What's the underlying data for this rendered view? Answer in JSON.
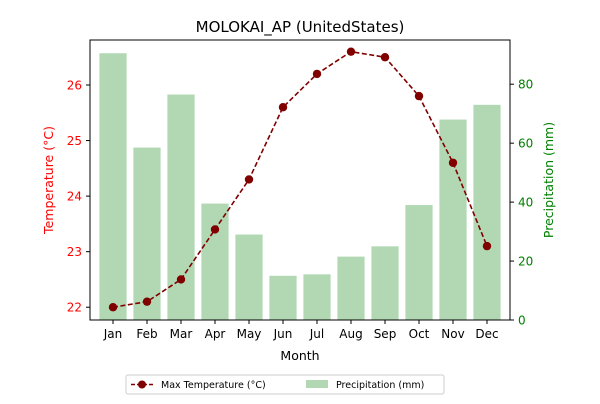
{
  "chart_data": {
    "type": "bar",
    "title": "MOLOKAI_AP (UnitedStates)",
    "xlabel": "Month",
    "ylabel_left": "Temperature (°C)",
    "ylabel_right": "Precipitation (mm)",
    "categories": [
      "Jan",
      "Feb",
      "Mar",
      "Apr",
      "May",
      "Jun",
      "Jul",
      "Aug",
      "Sep",
      "Oct",
      "Nov",
      "Dec"
    ],
    "ylim_left": [
      21.77,
      26.81
    ],
    "ylim_right": [
      0,
      95
    ],
    "yticks_left": [
      "22",
      "23",
      "24",
      "25",
      "26"
    ],
    "yticks_right": [
      "0",
      "20",
      "40",
      "60",
      "80"
    ],
    "grid": false,
    "legend_placement": "bottom-center",
    "series": [
      {
        "name": "Max Temperature (°C)",
        "type": "line",
        "axis": "left",
        "color": "#800000",
        "values": [
          22.0,
          22.1,
          22.5,
          23.4,
          24.3,
          25.6,
          26.2,
          26.6,
          26.5,
          25.8,
          24.6,
          23.1
        ]
      },
      {
        "name": "Precipitation (mm)",
        "type": "bar",
        "axis": "right",
        "color": "#b1d8b2",
        "values": [
          90.5,
          58.5,
          76.5,
          39.5,
          29,
          15,
          15.5,
          21.5,
          25,
          39,
          68,
          73
        ]
      }
    ],
    "colors": {
      "left_axis": "#ff0000",
      "right_axis": "#008000",
      "line": "#800000",
      "bar": "#b1d8b2"
    }
  }
}
